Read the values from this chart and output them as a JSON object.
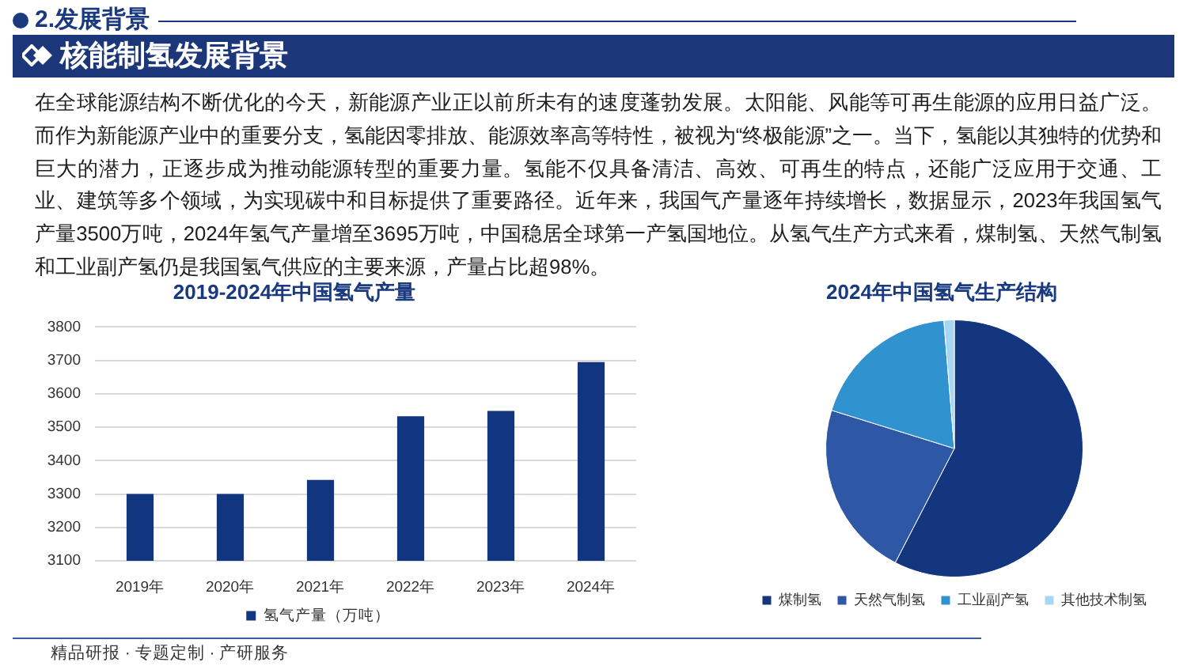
{
  "chart_data": [
    {
      "type": "other",
      "title": "2.发展背景",
      "subtitle": "核能制氢发展背景",
      "annotations": [
        "在全球能源结构不断优化的今天，新能源产业正以前所未有的速度蓬勃发展。太阳能、风能等可再生能源的应用日益广泛。而作为新能源产业中的重要分支，氢能因零排放、能源效率高等特性，被视为“终极能源”之一。当下，氢能以其独特的优势和巨大的潜力，正逐步成为推动能源转型的重要力量。氢能不仅具备清洁、高效、可再生的特点，还能广泛应用于交通、工业、建筑等多个领域，为实现碳中和目标提供了重要路径。近年来，我国气产量逐年持续增长，数据显示，2023年我国氢气产量3500万吨，2024年氢气产量增至3695万吨，中国稳居全球第一产氢国地位。从氢气生产方式来看，煤制氢、天然气制氢和工业副产氢仍是我国氢气供应的主要来源，产量占比超98%。"
      ]
    },
    {
      "type": "bar",
      "title": "2019-2024年中国氢气产量",
      "categories": [
        "2019年",
        "2020年",
        "2021年",
        "2022年",
        "2023年",
        "2024年"
      ],
      "series": [
        {
          "name": "氢气产量（万吨）",
          "color": "#12357f",
          "values": [
            3300,
            3300,
            3342,
            3533,
            3549,
            3695
          ]
        }
      ],
      "ylim": [
        3100,
        3800
      ],
      "yticks": [
        3100,
        3200,
        3300,
        3400,
        3500,
        3600,
        3700,
        3800
      ],
      "grid": "y",
      "legend": "bottom",
      "annotations": [
        "精品研报 · 专题定制 · 产研服务"
      ]
    },
    {
      "type": "pie",
      "title": "2024年中国氢气生产结构",
      "categories": [
        "煤制氢",
        "天然气制氢",
        "工业副产氢",
        "其他技术制氢"
      ],
      "values": [
        57.6,
        22.2,
        18.9,
        1.3
      ],
      "colors": [
        "#13367f",
        "#2e58a6",
        "#3192d0",
        "#a6d6f4"
      ],
      "legend": "bottom"
    }
  ]
}
